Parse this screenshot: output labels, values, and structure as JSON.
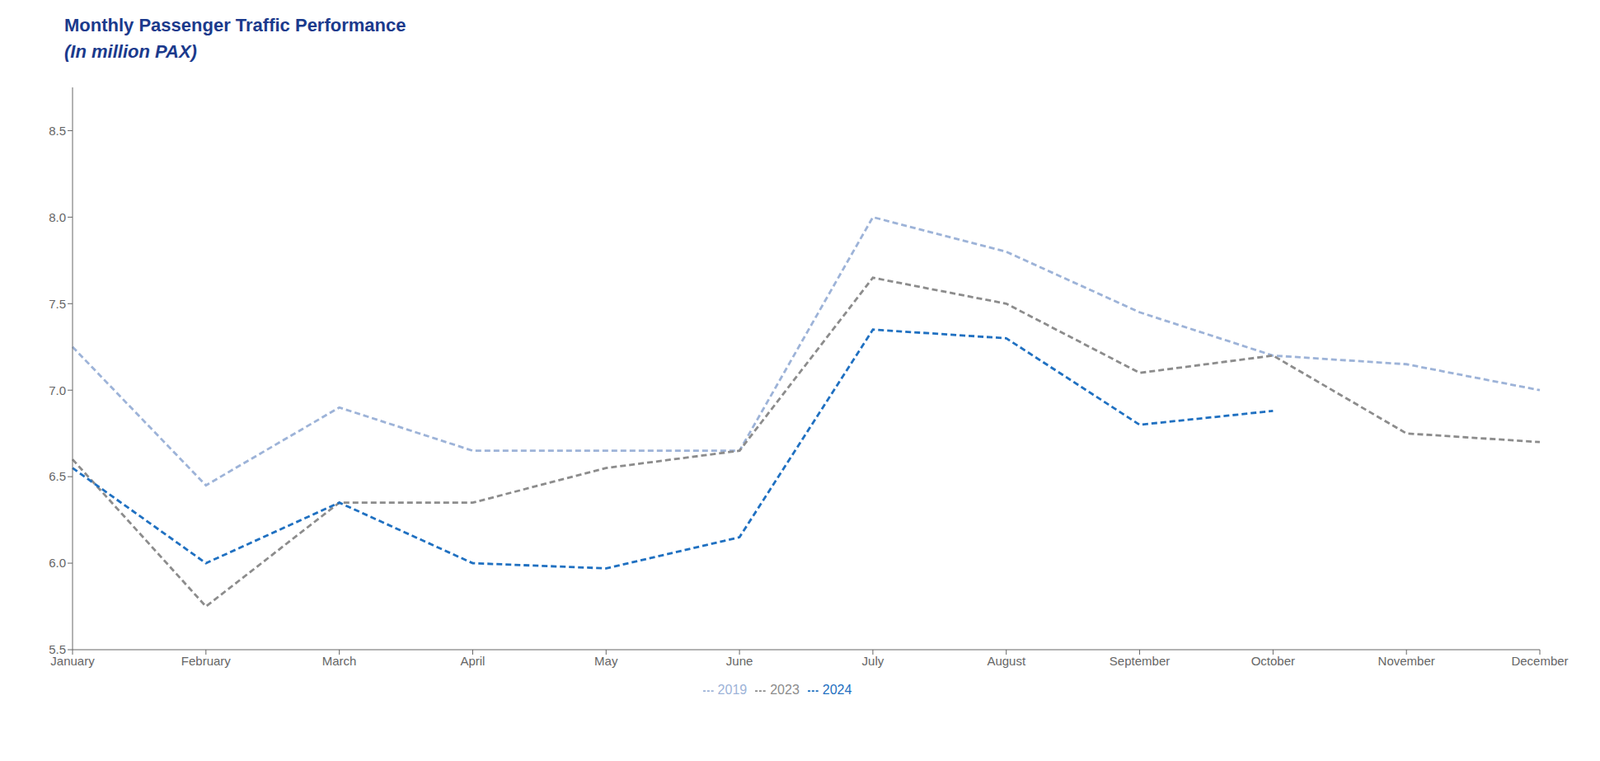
{
  "chart_data": {
    "type": "line",
    "title": "Monthly Passenger Traffic Performance",
    "subtitle": "(In million PAX)",
    "categories": [
      "January",
      "February",
      "March",
      "April",
      "May",
      "June",
      "July",
      "August",
      "September",
      "October",
      "November",
      "December"
    ],
    "series": [
      {
        "name": "2019",
        "color": "#9DB3D8",
        "values": [
          7.25,
          6.45,
          6.9,
          6.65,
          6.65,
          6.65,
          8.0,
          7.8,
          7.45,
          7.2,
          7.15,
          7.0
        ]
      },
      {
        "name": "2023",
        "color": "#8C8C8C",
        "values": [
          6.6,
          5.75,
          6.35,
          6.35,
          6.55,
          6.65,
          7.65,
          7.5,
          7.1,
          7.2,
          6.75,
          6.7
        ]
      },
      {
        "name": "2024",
        "color": "#1F70C1",
        "values": [
          6.55,
          6.0,
          6.35,
          6.0,
          5.97,
          6.15,
          7.35,
          7.3,
          6.8,
          6.88,
          null,
          null
        ]
      }
    ],
    "ylim": [
      5.5,
      8.75
    ],
    "yticks": [
      5.5,
      {
        "value": 6.0,
        "label": "6.0"
      },
      6.5,
      {
        "value": 7.0,
        "label": "7.0"
      },
      7.5,
      {
        "value": 8.0,
        "label": "8.0"
      },
      8.5
    ],
    "line_style": "dashed",
    "grid": false,
    "legend": "bottom"
  }
}
